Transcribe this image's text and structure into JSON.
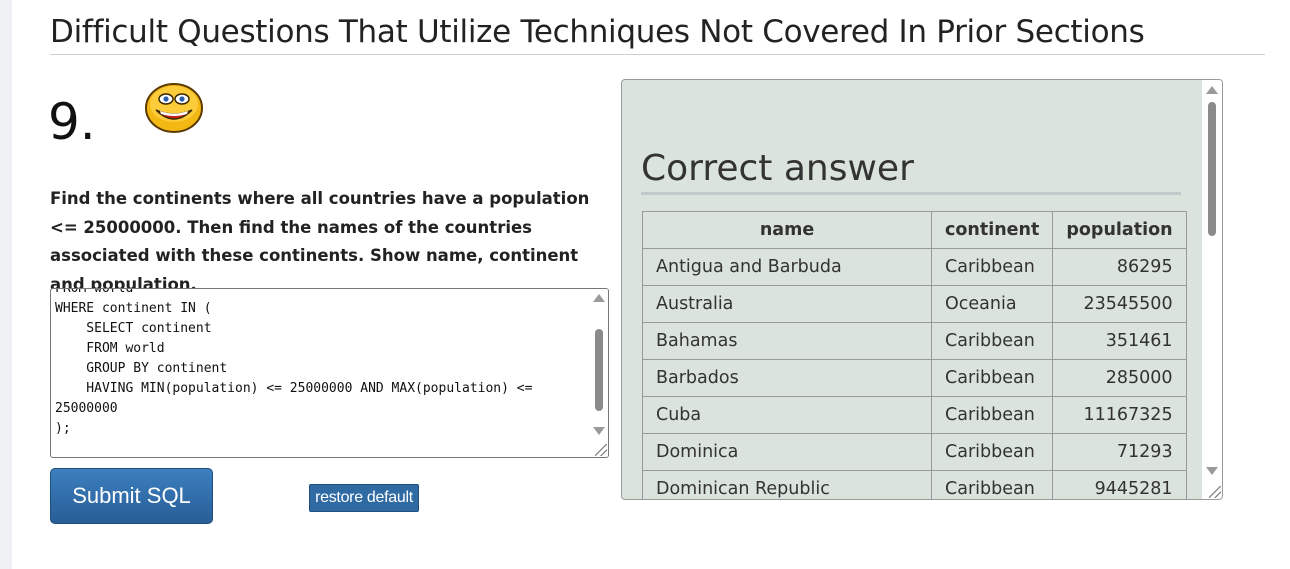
{
  "section": {
    "title": "Difficult Questions That Utilize Techniques Not Covered In Prior Sections"
  },
  "question": {
    "number": "9.",
    "text": "Find the continents where all countries have a population <= 25000000. Then find the names of the countries associated with these continents. Show name, continent and population."
  },
  "editor": {
    "code": "FROM world\nWHERE continent IN (\n    SELECT continent\n    FROM world\n    GROUP BY continent\n    HAVING MIN(population) <= 25000000 AND MAX(population) <=\n25000000\n);"
  },
  "buttons": {
    "submit": "Submit SQL",
    "restore": "restore default"
  },
  "answer": {
    "title": "Correct answer",
    "headers": {
      "name": "name",
      "continent": "continent",
      "population": "population"
    },
    "rows": [
      {
        "name": "Antigua and Barbuda",
        "continent": "Caribbean",
        "population": "86295"
      },
      {
        "name": "Australia",
        "continent": "Oceania",
        "population": "23545500"
      },
      {
        "name": "Bahamas",
        "continent": "Caribbean",
        "population": "351461"
      },
      {
        "name": "Barbados",
        "continent": "Caribbean",
        "population": "285000"
      },
      {
        "name": "Cuba",
        "continent": "Caribbean",
        "population": "11167325"
      },
      {
        "name": "Dominica",
        "continent": "Caribbean",
        "population": "71293"
      },
      {
        "name": "Dominican Republic",
        "continent": "Caribbean",
        "population": "9445281"
      }
    ]
  },
  "icons": {
    "smiley": "smiley-face-icon"
  },
  "colors": {
    "button_blue": "#2f6aa3",
    "panel_bg": "#dae3dc"
  }
}
